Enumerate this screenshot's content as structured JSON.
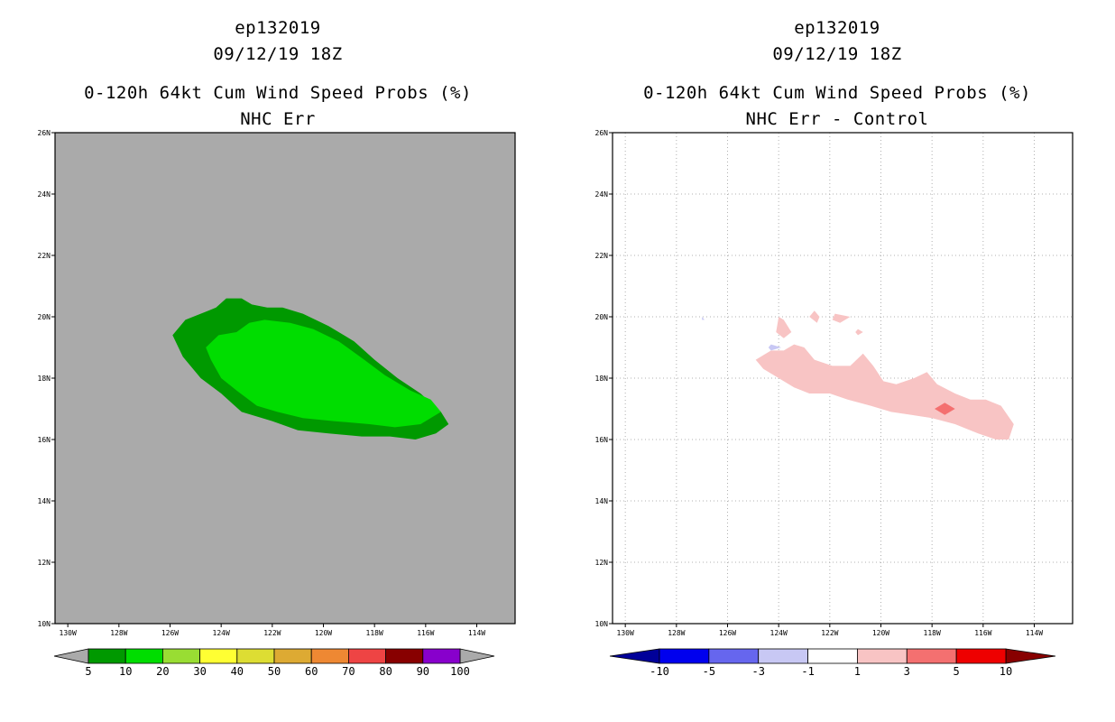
{
  "left_panel": {
    "title_lines": [
      "ep132019",
      "09/12/19 18Z",
      "0-120h 64kt Cum Wind Speed Probs (%)",
      "NHC Err"
    ]
  },
  "right_panel": {
    "title_lines": [
      "ep132019",
      "09/12/19 18Z",
      "0-120h 64kt Cum Wind Speed Probs (%)",
      "NHC Err - Control"
    ]
  },
  "chart_data": [
    {
      "type": "contour-map",
      "title": "0-120h 64kt Cum Wind Speed Probs (%)",
      "subtitle": "NHC Err",
      "storm": "ep132019",
      "valid": "09/12/19 18Z",
      "lon_range": [
        -130.5,
        -112.5
      ],
      "lat_range": [
        10,
        26
      ],
      "lon_ticks": [
        -130,
        -128,
        -126,
        -124,
        -122,
        -120,
        -118,
        -116,
        -114
      ],
      "lon_tick_labels": [
        "130W",
        "128W",
        "126W",
        "124W",
        "122W",
        "120W",
        "118W",
        "116W",
        "114W"
      ],
      "lat_ticks": [
        10,
        12,
        14,
        16,
        18,
        20,
        22,
        24,
        26
      ],
      "lat_tick_labels": [
        "10N",
        "12N",
        "14N",
        "16N",
        "18N",
        "20N",
        "22N",
        "24N",
        "26N"
      ],
      "background_color": "#aaaaaa",
      "grid": false,
      "colorbar": {
        "labels": [
          "5",
          "10",
          "20",
          "30",
          "40",
          "50",
          "60",
          "70",
          "80",
          "90",
          "100"
        ],
        "colors": [
          "#009900",
          "#00dd00",
          "#99dd33",
          "#ffff33",
          "#dddd33",
          "#ddaa33",
          "#ee8833",
          "#ee4444",
          "#880000",
          "#8800cc"
        ],
        "under_color": "#aaaaaa",
        "over_color": "#aaaaaa"
      },
      "regions": [
        {
          "level": "5-10",
          "color": "#009900",
          "polygon": [
            [
              -125.9,
              19.4
            ],
            [
              -125.4,
              19.9
            ],
            [
              -124.5,
              20.2
            ],
            [
              -124.2,
              20.3
            ],
            [
              -123.8,
              20.6
            ],
            [
              -123.2,
              20.6
            ],
            [
              -122.8,
              20.4
            ],
            [
              -122.2,
              20.3
            ],
            [
              -121.6,
              20.3
            ],
            [
              -120.8,
              20.1
            ],
            [
              -119.8,
              19.7
            ],
            [
              -118.8,
              19.2
            ],
            [
              -118.0,
              18.6
            ],
            [
              -117.1,
              18.0
            ],
            [
              -116.2,
              17.5
            ],
            [
              -115.4,
              16.9
            ],
            [
              -115.1,
              16.5
            ],
            [
              -115.6,
              16.2
            ],
            [
              -116.4,
              16.0
            ],
            [
              -117.4,
              16.1
            ],
            [
              -118.5,
              16.1
            ],
            [
              -119.8,
              16.2
            ],
            [
              -121.0,
              16.3
            ],
            [
              -122.0,
              16.6
            ],
            [
              -123.2,
              16.9
            ],
            [
              -124.0,
              17.5
            ],
            [
              -124.8,
              18.0
            ],
            [
              -125.5,
              18.7
            ],
            [
              -125.9,
              19.4
            ]
          ]
        },
        {
          "level": "10-20",
          "color": "#00dd00",
          "polygon": [
            [
              -124.1,
              19.4
            ],
            [
              -123.4,
              19.5
            ],
            [
              -122.9,
              19.8
            ],
            [
              -122.3,
              19.9
            ],
            [
              -121.3,
              19.8
            ],
            [
              -120.4,
              19.6
            ],
            [
              -119.4,
              19.2
            ],
            [
              -118.4,
              18.6
            ],
            [
              -117.6,
              18.1
            ],
            [
              -116.6,
              17.6
            ],
            [
              -115.8,
              17.3
            ],
            [
              -115.4,
              16.9
            ],
            [
              -116.2,
              16.5
            ],
            [
              -117.2,
              16.4
            ],
            [
              -118.2,
              16.5
            ],
            [
              -119.6,
              16.6
            ],
            [
              -120.8,
              16.7
            ],
            [
              -121.8,
              16.9
            ],
            [
              -122.6,
              17.1
            ],
            [
              -123.4,
              17.6
            ],
            [
              -124.0,
              18.0
            ],
            [
              -124.4,
              18.6
            ],
            [
              -124.6,
              19.0
            ],
            [
              -124.1,
              19.4
            ]
          ]
        }
      ]
    },
    {
      "type": "contour-map",
      "title": "0-120h 64kt Cum Wind Speed Probs (%)",
      "subtitle": "NHC Err - Control",
      "storm": "ep132019",
      "valid": "09/12/19 18Z",
      "lon_range": [
        -130.5,
        -112.5
      ],
      "lat_range": [
        10,
        26
      ],
      "lon_ticks": [
        -130,
        -128,
        -126,
        -124,
        -122,
        -120,
        -118,
        -116,
        -114
      ],
      "lon_tick_labels": [
        "130W",
        "128W",
        "126W",
        "124W",
        "122W",
        "120W",
        "118W",
        "116W",
        "114W"
      ],
      "lat_ticks": [
        10,
        12,
        14,
        16,
        18,
        20,
        22,
        24,
        26
      ],
      "lat_tick_labels": [
        "10N",
        "12N",
        "14N",
        "16N",
        "18N",
        "20N",
        "22N",
        "24N",
        "26N"
      ],
      "background_color": "#ffffff",
      "grid": true,
      "colorbar": {
        "labels": [
          "-10",
          "-5",
          "-3",
          "-1",
          "1",
          "3",
          "5",
          "10"
        ],
        "colors": [
          "#0000ee",
          "#6666ee",
          "#c8c8f4",
          "#ffffff",
          "#f8c4c4",
          "#f47070",
          "#ee0000"
        ],
        "under_color": "#000099",
        "over_color": "#880000"
      },
      "regions": [
        {
          "level": "1-3",
          "color": "#f8c4c4",
          "polygon": [
            [
              -124.9,
              18.6
            ],
            [
              -124.6,
              18.3
            ],
            [
              -124.0,
              18.0
            ],
            [
              -123.4,
              17.7
            ],
            [
              -122.8,
              17.5
            ],
            [
              -122.0,
              17.5
            ],
            [
              -121.3,
              17.3
            ],
            [
              -120.4,
              17.1
            ],
            [
              -119.6,
              16.9
            ],
            [
              -118.8,
              16.8
            ],
            [
              -118.0,
              16.7
            ],
            [
              -117.1,
              16.5
            ],
            [
              -116.2,
              16.2
            ],
            [
              -115.5,
              16.0
            ],
            [
              -115.0,
              16.0
            ],
            [
              -114.8,
              16.5
            ],
            [
              -115.3,
              17.1
            ],
            [
              -115.9,
              17.3
            ],
            [
              -116.5,
              17.3
            ],
            [
              -117.1,
              17.5
            ],
            [
              -117.8,
              17.8
            ],
            [
              -118.2,
              18.2
            ],
            [
              -118.7,
              18.0
            ],
            [
              -119.4,
              17.8
            ],
            [
              -119.9,
              17.9
            ],
            [
              -120.3,
              18.4
            ],
            [
              -120.7,
              18.8
            ],
            [
              -121.2,
              18.4
            ],
            [
              -121.9,
              18.4
            ],
            [
              -122.6,
              18.6
            ],
            [
              -123.0,
              19.0
            ],
            [
              -123.4,
              19.1
            ],
            [
              -123.8,
              18.9
            ],
            [
              -124.3,
              18.9
            ],
            [
              -124.9,
              18.6
            ]
          ]
        },
        {
          "level": "1-3",
          "color": "#f8c4c4",
          "polygon": [
            [
              -124.0,
              20.0
            ],
            [
              -123.8,
              19.9
            ],
            [
              -123.5,
              19.5
            ],
            [
              -123.8,
              19.3
            ],
            [
              -124.1,
              19.5
            ],
            [
              -124.0,
              20.0
            ]
          ]
        },
        {
          "level": "1-3",
          "color": "#f8c4c4",
          "polygon": [
            [
              -122.6,
              20.2
            ],
            [
              -122.4,
              20.0
            ],
            [
              -122.5,
              19.8
            ],
            [
              -122.8,
              20.0
            ],
            [
              -122.6,
              20.2
            ]
          ]
        },
        {
          "level": "1-3",
          "color": "#f8c4c4",
          "polygon": [
            [
              -121.8,
              20.1
            ],
            [
              -121.2,
              20.0
            ],
            [
              -121.6,
              19.8
            ],
            [
              -121.9,
              19.9
            ],
            [
              -121.8,
              20.1
            ]
          ]
        },
        {
          "level": "1-3",
          "color": "#f8c4c4",
          "polygon": [
            [
              -120.9,
              19.6
            ],
            [
              -120.7,
              19.5
            ],
            [
              -120.9,
              19.4
            ],
            [
              -121.0,
              19.5
            ],
            [
              -120.9,
              19.6
            ]
          ]
        },
        {
          "level": "3-5",
          "color": "#f47070",
          "polygon": [
            [
              -117.5,
              17.2
            ],
            [
              -117.1,
              17.0
            ],
            [
              -117.5,
              16.8
            ],
            [
              -117.9,
              17.0
            ],
            [
              -117.5,
              17.2
            ]
          ]
        },
        {
          "level": "-3--1",
          "color": "#c8c8f4",
          "polygon": [
            [
              -124.3,
              19.1
            ],
            [
              -123.9,
              19.0
            ],
            [
              -124.3,
              18.9
            ],
            [
              -124.4,
              19.0
            ],
            [
              -124.3,
              19.1
            ]
          ]
        },
        {
          "level": "-3--1",
          "color": "#c8c8f4",
          "polygon": [
            [
              -127.0,
              20.0
            ],
            [
              -126.9,
              19.9
            ],
            [
              -127.0,
              19.9
            ],
            [
              -127.0,
              20.0
            ]
          ]
        }
      ]
    }
  ]
}
